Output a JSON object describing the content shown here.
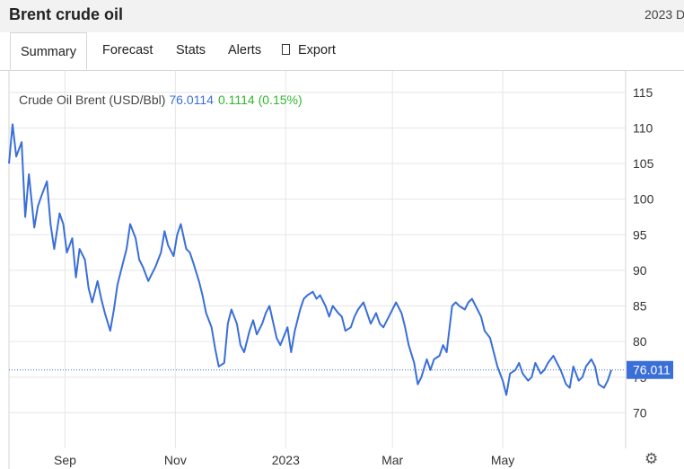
{
  "header": {
    "title": "Brent crude oil",
    "right_text": "2023 D"
  },
  "tabs": [
    {
      "label": "Summary",
      "active": true
    },
    {
      "label": "Forecast"
    },
    {
      "label": "Stats"
    },
    {
      "label": "Alerts"
    },
    {
      "label": "Export",
      "icon": "export-icon"
    }
  ],
  "legend": {
    "name": "Crude Oil Brent (USD/Bbl)",
    "value": "76.0114",
    "change": "0.1114 (0.15%)"
  },
  "colors": {
    "line": "#3a6fd8",
    "up": "#2eb82e",
    "grid": "#e6e6e6",
    "tag": "#3a6fd8"
  },
  "settings_icon": "gear-icon",
  "chart_data": {
    "type": "line",
    "x": [
      "2022-08-01",
      "2022-08-03",
      "2022-08-05",
      "2022-08-08",
      "2022-08-10",
      "2022-08-12",
      "2022-08-15",
      "2022-08-17",
      "2022-08-19",
      "2022-08-22",
      "2022-08-24",
      "2022-08-26",
      "2022-08-29",
      "2022-08-31",
      "2022-09-02",
      "2022-09-05",
      "2022-09-07",
      "2022-09-09",
      "2022-09-12",
      "2022-09-14",
      "2022-09-16",
      "2022-09-19",
      "2022-09-21",
      "2022-09-23",
      "2022-09-26",
      "2022-09-28",
      "2022-09-30",
      "2022-10-03",
      "2022-10-05",
      "2022-10-07",
      "2022-10-10",
      "2022-10-12",
      "2022-10-14",
      "2022-10-17",
      "2022-10-19",
      "2022-10-21",
      "2022-10-24",
      "2022-10-26",
      "2022-10-28",
      "2022-10-31",
      "2022-11-02",
      "2022-11-04",
      "2022-11-07",
      "2022-11-09",
      "2022-11-11",
      "2022-11-14",
      "2022-11-16",
      "2022-11-18",
      "2022-11-21",
      "2022-11-23",
      "2022-11-25",
      "2022-11-28",
      "2022-11-30",
      "2022-12-02",
      "2022-12-05",
      "2022-12-07",
      "2022-12-09",
      "2022-12-12",
      "2022-12-14",
      "2022-12-16",
      "2022-12-19",
      "2022-12-21",
      "2022-12-23",
      "2022-12-27",
      "2022-12-29",
      "2023-01-02",
      "2023-01-04",
      "2023-01-06",
      "2023-01-09",
      "2023-01-11",
      "2023-01-13",
      "2023-01-16",
      "2023-01-18",
      "2023-01-20",
      "2023-01-23",
      "2023-01-25",
      "2023-01-27",
      "2023-01-30",
      "2023-02-01",
      "2023-02-03",
      "2023-02-06",
      "2023-02-08",
      "2023-02-10",
      "2023-02-13",
      "2023-02-15",
      "2023-02-17",
      "2023-02-20",
      "2023-02-22",
      "2023-02-24",
      "2023-02-27",
      "2023-03-01",
      "2023-03-03",
      "2023-03-06",
      "2023-03-08",
      "2023-03-10",
      "2023-03-13",
      "2023-03-15",
      "2023-03-17",
      "2023-03-20",
      "2023-03-22",
      "2023-03-24",
      "2023-03-27",
      "2023-03-29",
      "2023-03-31",
      "2023-04-03",
      "2023-04-05",
      "2023-04-07",
      "2023-04-10",
      "2023-04-12",
      "2023-04-14",
      "2023-04-17",
      "2023-04-19",
      "2023-04-21",
      "2023-04-24",
      "2023-04-26",
      "2023-04-28",
      "2023-05-01",
      "2023-05-03",
      "2023-05-05",
      "2023-05-08",
      "2023-05-10",
      "2023-05-12",
      "2023-05-15",
      "2023-05-17",
      "2023-05-19",
      "2023-05-22",
      "2023-05-24",
      "2023-05-26",
      "2023-05-29",
      "2023-05-31",
      "2023-06-02",
      "2023-06-05",
      "2023-06-07",
      "2023-06-09",
      "2023-06-12",
      "2023-06-14",
      "2023-06-16",
      "2023-06-19",
      "2023-06-21",
      "2023-06-23",
      "2023-06-26",
      "2023-06-28",
      "2023-06-30"
    ],
    "values": [
      105.0,
      110.5,
      106.0,
      108.0,
      97.5,
      103.5,
      96.0,
      99.0,
      100.5,
      102.5,
      96.5,
      93.0,
      98.0,
      96.5,
      92.5,
      94.5,
      89.0,
      93.0,
      91.5,
      87.5,
      85.5,
      88.5,
      86.0,
      84.0,
      81.5,
      84.5,
      88.0,
      91.0,
      93.0,
      96.5,
      94.5,
      91.5,
      90.5,
      88.5,
      89.5,
      90.5,
      92.5,
      95.5,
      93.5,
      92.0,
      95.0,
      96.5,
      93.0,
      92.5,
      91.0,
      88.5,
      86.5,
      84.0,
      82.0,
      79.0,
      76.5,
      77.0,
      82.5,
      84.5,
      82.5,
      79.5,
      78.5,
      81.5,
      83.0,
      81.0,
      82.5,
      84.0,
      85.0,
      80.5,
      79.5,
      82.0,
      78.5,
      81.5,
      84.5,
      86.0,
      86.5,
      87.0,
      86.0,
      86.5,
      85.0,
      83.5,
      85.0,
      84.0,
      83.5,
      81.5,
      82.0,
      83.5,
      84.5,
      85.5,
      84.0,
      82.5,
      84.0,
      82.5,
      82.0,
      83.5,
      84.5,
      85.5,
      84.0,
      82.0,
      79.5,
      77.0,
      74.0,
      75.0,
      77.5,
      76.0,
      77.5,
      78.0,
      79.5,
      78.5,
      85.0,
      85.5,
      85.0,
      84.5,
      85.5,
      86.0,
      84.5,
      83.5,
      81.5,
      80.5,
      78.5,
      76.5,
      74.5,
      72.5,
      75.5,
      76.0,
      77.0,
      75.5,
      74.5,
      75.0,
      77.0,
      75.5,
      76.0,
      77.0,
      78.0,
      77.0,
      76.0,
      74.0,
      73.5,
      76.5,
      74.5,
      75.0,
      76.5,
      77.5,
      76.5,
      74.0,
      73.5,
      74.5,
      76.0
    ],
    "last_value": 76.011,
    "title": "Crude Oil Brent (USD/Bbl)",
    "y_ticks": [
      70,
      75,
      80,
      85,
      90,
      95,
      100,
      105,
      110,
      115
    ],
    "ylim": [
      65,
      118
    ],
    "x_tick_labels": [
      {
        "label": "Sep",
        "date": "2022-09-01"
      },
      {
        "label": "Nov",
        "date": "2022-11-01"
      },
      {
        "label": "2023",
        "date": "2023-01-01"
      },
      {
        "label": "Mar",
        "date": "2023-03-01"
      },
      {
        "label": "May",
        "date": "2023-05-01"
      }
    ],
    "grid": true,
    "axis_position": "right"
  }
}
